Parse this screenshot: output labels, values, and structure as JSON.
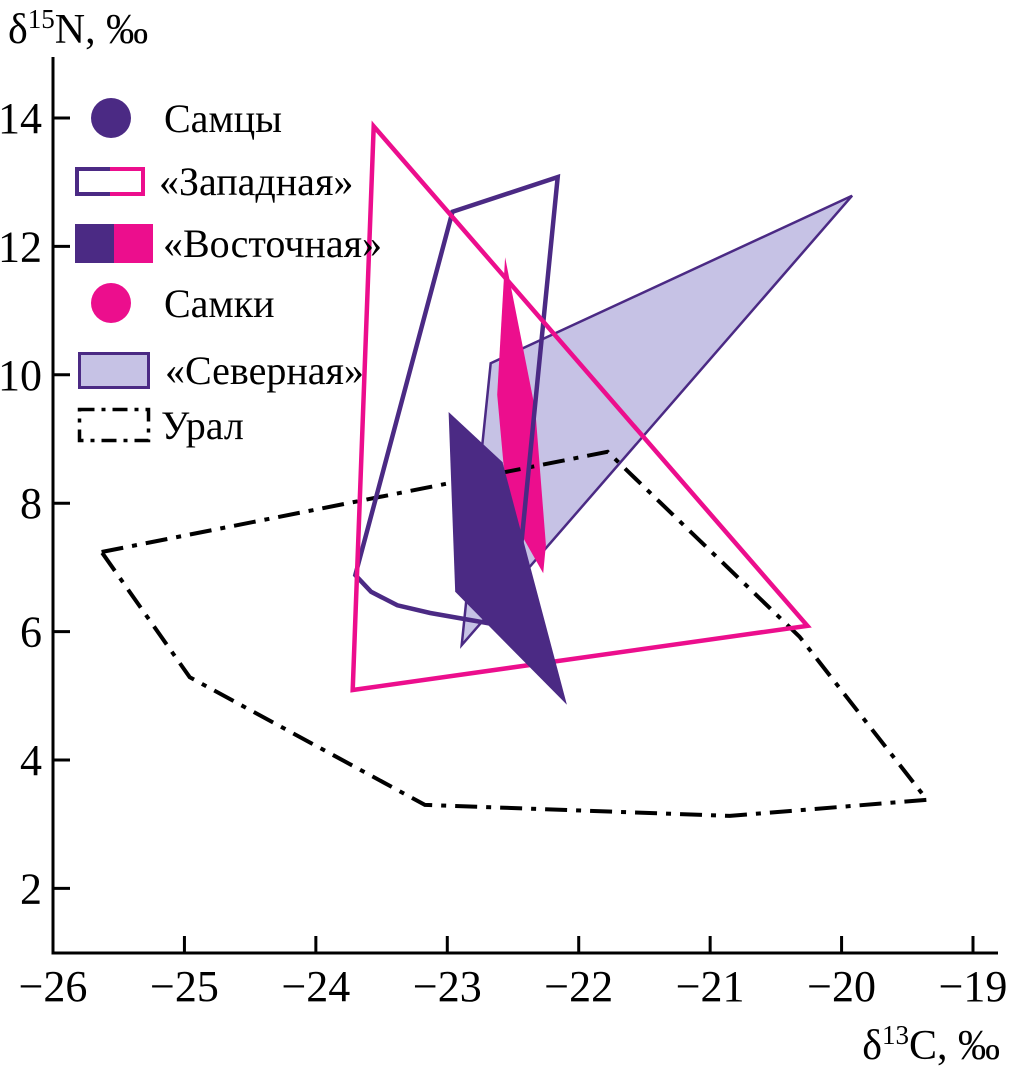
{
  "figure": {
    "y_axis_title": {
      "delta": "δ",
      "sup": "15",
      "rest": "N, ‰"
    },
    "x_axis_title": {
      "delta": "δ",
      "sup": "13",
      "rest": "C, ‰"
    },
    "colors": {
      "purple": "#4b2a84",
      "pink": "#ec0e8d",
      "lavender": "#c6c2e5",
      "black": "#000000"
    }
  },
  "legend": {
    "items": [
      {
        "label": "Самцы",
        "swatch": "circle-purple"
      },
      {
        "label": "«Западная»",
        "swatch": "outlined-rect-purple-pink"
      },
      {
        "label": "«Восточная»",
        "swatch": "filled-rect-purple-pink"
      },
      {
        "label": "Самки",
        "swatch": "circle-pink"
      },
      {
        "label": "«Северная»",
        "swatch": "filled-rect-lavender"
      },
      {
        "label": "Урал",
        "swatch": "dashdot-rect"
      }
    ]
  },
  "chart_data": {
    "type": "polygon",
    "title": "",
    "xlabel": "δ13C, ‰",
    "ylabel": "δ15N, ‰",
    "xlim": [
      -26,
      -18.8
    ],
    "ylim": [
      1,
      15
    ],
    "grid": false,
    "legend_position": "upper-left-inside",
    "x_ticks": [
      {
        "v": -26,
        "label": "−26"
      },
      {
        "v": -25,
        "label": "−25"
      },
      {
        "v": -24,
        "label": "−24"
      },
      {
        "v": -23,
        "label": "−23"
      },
      {
        "v": -22,
        "label": "−22"
      },
      {
        "v": -21,
        "label": "−21"
      },
      {
        "v": -20,
        "label": "−20"
      },
      {
        "v": -19,
        "label": "−19"
      }
    ],
    "y_ticks": [
      {
        "v": 14,
        "label": "14"
      },
      {
        "v": 12,
        "label": "12"
      },
      {
        "v": 10,
        "label": "10"
      },
      {
        "v": 8,
        "label": "8"
      },
      {
        "v": 6,
        "label": "6"
      },
      {
        "v": 4,
        "label": "4"
      },
      {
        "v": 2,
        "label": "2"
      }
    ],
    "series": [
      {
        "name": "«Северная»",
        "group": "northern",
        "fill": "#c6c2e5",
        "stroke": "#4b2a84",
        "width": 2.5,
        "points": [
          [
            -22.67,
            10.18
          ],
          [
            -19.92,
            12.79
          ],
          [
            -22.89,
            5.79
          ]
        ]
      },
      {
        "name": "«Восточная» самки",
        "group": "eastern-females",
        "fill": "#ec0e8d",
        "points": [
          [
            -22.56,
            11.83
          ],
          [
            -22.33,
            9.45
          ],
          [
            -22.25,
            7.35
          ],
          [
            -22.27,
            6.91
          ],
          [
            -22.54,
            7.89
          ],
          [
            -22.62,
            9.69
          ]
        ]
      },
      {
        "name": "Урал",
        "group": "ural",
        "stroke": "#000000",
        "width": 4,
        "dash": "22 9 5 9",
        "points": [
          [
            -25.63,
            7.24
          ],
          [
            -21.78,
            8.8
          ],
          [
            -20.32,
            5.92
          ],
          [
            -19.35,
            3.38
          ],
          [
            -20.85,
            3.13
          ],
          [
            -23.17,
            3.3
          ],
          [
            -24.96,
            5.29
          ]
        ]
      },
      {
        "name": "«Западная» самцы",
        "group": "western-males",
        "stroke": "#4b2a84",
        "width": 4.5,
        "points": [
          [
            -22.96,
            12.54
          ],
          [
            -22.16,
            13.08
          ],
          [
            -22.5,
            6.06
          ],
          [
            -22.74,
            6.15
          ],
          [
            -23.13,
            6.29
          ],
          [
            -23.38,
            6.41
          ],
          [
            -23.58,
            6.62
          ],
          [
            -23.7,
            6.88
          ]
        ]
      },
      {
        "name": "«Западная» самки",
        "group": "western-females",
        "stroke": "#ec0e8d",
        "width": 4.5,
        "points": [
          [
            -23.56,
            13.87
          ],
          [
            -20.26,
            6.09
          ],
          [
            -23.72,
            5.09
          ]
        ]
      },
      {
        "name": "«Восточная» самцы",
        "group": "eastern-males",
        "fill": "#4b2a84",
        "points": [
          [
            -22.99,
            9.42
          ],
          [
            -22.58,
            8.64
          ],
          [
            -22.09,
            4.86
          ],
          [
            -22.94,
            6.62
          ]
        ]
      }
    ]
  }
}
